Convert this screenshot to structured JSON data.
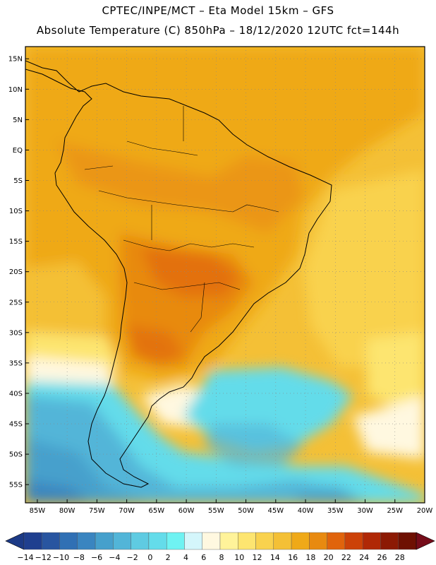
{
  "title": {
    "line1": "CPTEC/INPE/MCT –  Eta Model 15km – GFS",
    "line2": "Absolute Temperature (C) 850hPa – 18/12/2020 12UTC fct=144h"
  },
  "map": {
    "lat_labels": [
      "15N",
      "10N",
      "5N",
      "EQ",
      "5S",
      "10S",
      "15S",
      "20S",
      "25S",
      "30S",
      "35S",
      "40S",
      "45S",
      "50S",
      "55S"
    ],
    "lon_labels": [
      "85W",
      "80W",
      "75W",
      "70W",
      "65W",
      "60W",
      "55W",
      "50W",
      "45W",
      "40W",
      "35W",
      "30W",
      "25W",
      "20W"
    ]
  },
  "colorbar": {
    "labels": [
      "-14",
      "-12",
      "-10",
      "-8",
      "-6",
      "-4",
      "-2",
      "0",
      "2",
      "4",
      "6",
      "8",
      "10",
      "12",
      "14",
      "16",
      "18",
      "20",
      "22",
      "24",
      "26",
      "28"
    ],
    "colors": [
      "#1f3f8f",
      "#2855a0",
      "#3070b4",
      "#3a85c0",
      "#46a0cc",
      "#52b5d8",
      "#5fcbe2",
      "#64dcea",
      "#6ff2f2",
      "#d4f6fb",
      "#fff8e0",
      "#fff39a",
      "#fde570",
      "#f9d24e",
      "#f4c036",
      "#efa918",
      "#e88a10",
      "#e0640c",
      "#cc4208",
      "#b02806",
      "#8c1a04",
      "#6e1002"
    ],
    "low_color": "#1c3a86",
    "high_color": "#760c1a"
  }
}
